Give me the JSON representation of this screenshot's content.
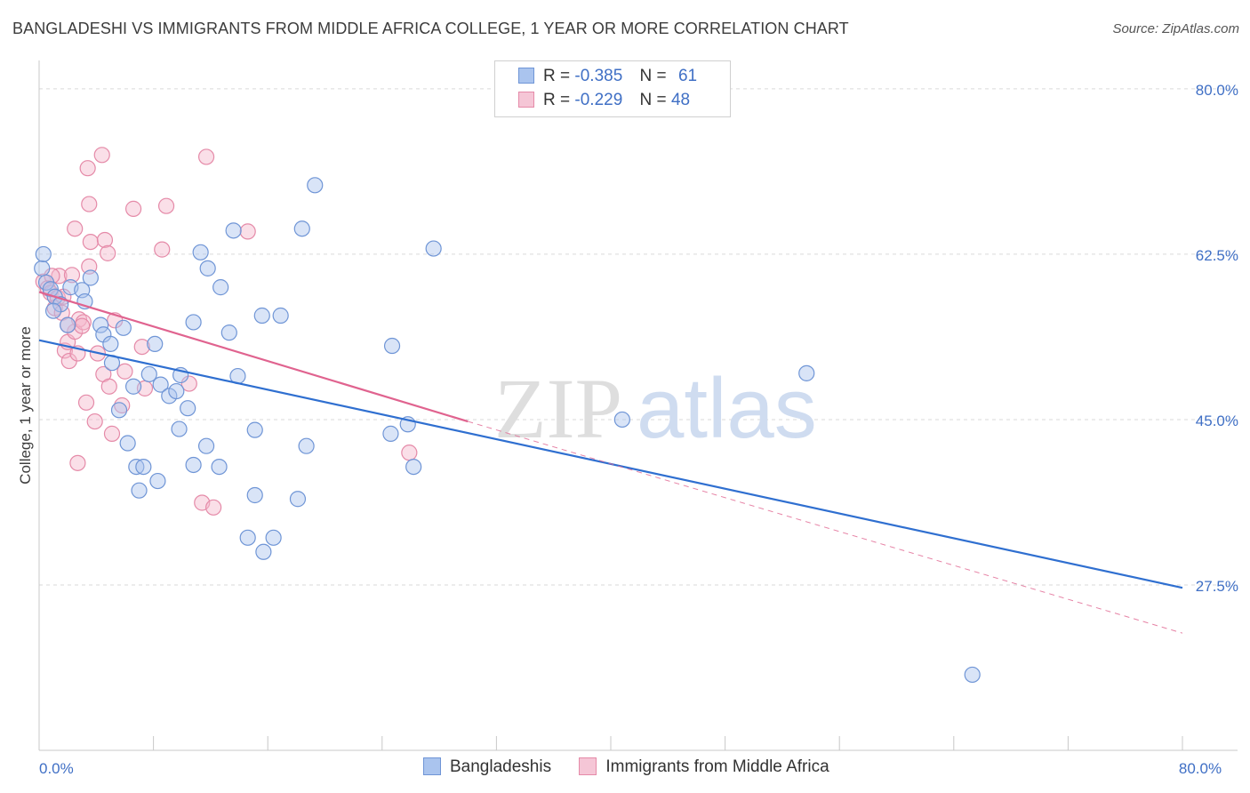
{
  "header": {
    "title": "BANGLADESHI VS IMMIGRANTS FROM MIDDLE AFRICA COLLEGE, 1 YEAR OR MORE CORRELATION CHART",
    "source": "Source: ZipAtlas.com"
  },
  "legend": {
    "series1": {
      "r_label": "R =",
      "r_value": "-0.385",
      "n_label": "N =",
      "n_value": "61"
    },
    "series2": {
      "r_label": "R =",
      "r_value": "-0.229",
      "n_label": "N =",
      "n_value": "48"
    }
  },
  "bottom_legend": {
    "series1": "Bangladeshis",
    "series2": "Immigrants from Middle Africa"
  },
  "watermark": {
    "zip": "ZIP",
    "atlas": "atlas"
  },
  "colors": {
    "blue_fill": "#aac4ee",
    "blue_stroke": "#6f95d6",
    "blue_line": "#2f6fd0",
    "pink_fill": "#f5b8cc",
    "pink_stroke": "#e58aa8",
    "pink_line": "#e0638f",
    "grid": "#d9d9d9",
    "label": "#3f6fc5"
  },
  "chart_data": {
    "type": "scatter",
    "title": "BANGLADESHI VS IMMIGRANTS FROM MIDDLE AFRICA COLLEGE, 1 YEAR OR MORE CORRELATION CHART",
    "xlabel": "",
    "ylabel": "College, 1 year or more",
    "xlim": [
      0,
      80
    ],
    "ylim": [
      10,
      83
    ],
    "x_tick_labels": [
      {
        "value": 0,
        "label": "0.0%"
      },
      {
        "value": 80,
        "label": "80.0%"
      }
    ],
    "y_tick_labels": [
      {
        "value": 80,
        "label": "80.0%"
      },
      {
        "value": 62.5,
        "label": "62.5%"
      },
      {
        "value": 45,
        "label": "45.0%"
      },
      {
        "value": 27.5,
        "label": "27.5%"
      }
    ],
    "series": [
      {
        "name": "Bangladeshis",
        "R": -0.385,
        "N": 61,
        "points": [
          [
            0.2,
            61.0
          ],
          [
            0.5,
            59.5
          ],
          [
            0.8,
            58.8
          ],
          [
            1.1,
            58.0
          ],
          [
            1.5,
            57.2
          ],
          [
            2.2,
            59.0
          ],
          [
            3.0,
            58.7
          ],
          [
            3.2,
            57.5
          ],
          [
            3.6,
            60.0
          ],
          [
            4.3,
            55.0
          ],
          [
            4.5,
            54.0
          ],
          [
            5.0,
            53.0
          ],
          [
            5.1,
            51.0
          ],
          [
            5.9,
            54.7
          ],
          [
            6.6,
            48.5
          ],
          [
            5.6,
            46.0
          ],
          [
            6.2,
            42.5
          ],
          [
            6.8,
            40.0
          ],
          [
            7.0,
            37.5
          ],
          [
            7.3,
            40.0
          ],
          [
            7.7,
            49.8
          ],
          [
            8.1,
            53.0
          ],
          [
            8.3,
            38.5
          ],
          [
            8.5,
            48.7
          ],
          [
            9.1,
            47.5
          ],
          [
            9.6,
            48.0
          ],
          [
            9.9,
            49.7
          ],
          [
            9.8,
            44.0
          ],
          [
            10.4,
            46.2
          ],
          [
            10.8,
            55.3
          ],
          [
            10.8,
            40.2
          ],
          [
            11.3,
            62.7
          ],
          [
            11.7,
            42.2
          ],
          [
            11.8,
            61.0
          ],
          [
            12.6,
            40.0
          ],
          [
            12.7,
            59.0
          ],
          [
            13.3,
            54.2
          ],
          [
            13.6,
            65.0
          ],
          [
            13.9,
            49.6
          ],
          [
            14.6,
            32.5
          ],
          [
            15.1,
            43.9
          ],
          [
            15.1,
            37.0
          ],
          [
            15.6,
            56.0
          ],
          [
            15.7,
            31.0
          ],
          [
            16.4,
            32.5
          ],
          [
            16.9,
            56.0
          ],
          [
            18.1,
            36.6
          ],
          [
            18.4,
            65.2
          ],
          [
            18.7,
            42.2
          ],
          [
            19.3,
            69.8
          ],
          [
            24.6,
            43.5
          ],
          [
            24.7,
            52.8
          ],
          [
            25.8,
            44.5
          ],
          [
            26.2,
            40.0
          ],
          [
            27.6,
            63.1
          ],
          [
            40.8,
            45.0
          ],
          [
            53.7,
            49.9
          ],
          [
            65.3,
            18.0
          ],
          [
            0.3,
            62.5
          ],
          [
            1.0,
            56.5
          ],
          [
            2.0,
            55.0
          ]
        ],
        "trend": [
          [
            0,
            53.4
          ],
          [
            80,
            27.2
          ]
        ]
      },
      {
        "name": "Immigrants from Middle Africa",
        "R": -0.229,
        "N": 48,
        "points": [
          [
            0.3,
            59.6
          ],
          [
            0.6,
            58.9
          ],
          [
            0.8,
            58.4
          ],
          [
            1.1,
            56.8
          ],
          [
            1.4,
            60.2
          ],
          [
            1.6,
            56.3
          ],
          [
            1.8,
            52.3
          ],
          [
            2.0,
            53.2
          ],
          [
            2.1,
            51.2
          ],
          [
            2.3,
            60.3
          ],
          [
            2.5,
            54.3
          ],
          [
            2.7,
            52.0
          ],
          [
            2.5,
            65.2
          ],
          [
            2.7,
            40.4
          ],
          [
            2.8,
            55.6
          ],
          [
            3.1,
            55.3
          ],
          [
            3.3,
            46.8
          ],
          [
            3.5,
            61.2
          ],
          [
            3.4,
            71.6
          ],
          [
            3.5,
            67.8
          ],
          [
            3.6,
            63.8
          ],
          [
            3.9,
            44.8
          ],
          [
            4.1,
            52.0
          ],
          [
            4.4,
            73.0
          ],
          [
            4.5,
            49.8
          ],
          [
            4.6,
            64.0
          ],
          [
            4.9,
            48.5
          ],
          [
            4.8,
            62.6
          ],
          [
            5.1,
            43.5
          ],
          [
            5.3,
            55.5
          ],
          [
            5.8,
            46.5
          ],
          [
            6.6,
            67.3
          ],
          [
            7.2,
            52.7
          ],
          [
            7.4,
            48.3
          ],
          [
            8.6,
            63.0
          ],
          [
            8.9,
            67.6
          ],
          [
            10.5,
            48.8
          ],
          [
            11.4,
            36.2
          ],
          [
            11.7,
            72.8
          ],
          [
            12.2,
            35.7
          ],
          [
            14.6,
            64.9
          ],
          [
            25.9,
            41.5
          ],
          [
            0.9,
            60.2
          ],
          [
            1.3,
            57.9
          ],
          [
            2.0,
            55.0
          ],
          [
            3.0,
            54.9
          ],
          [
            6.0,
            50.1
          ],
          [
            1.7,
            58.0
          ]
        ],
        "trend_solid": [
          [
            0,
            58.5
          ],
          [
            30,
            44.8
          ]
        ],
        "trend_dashed": [
          [
            30,
            44.8
          ],
          [
            80,
            22.4
          ]
        ]
      }
    ]
  }
}
